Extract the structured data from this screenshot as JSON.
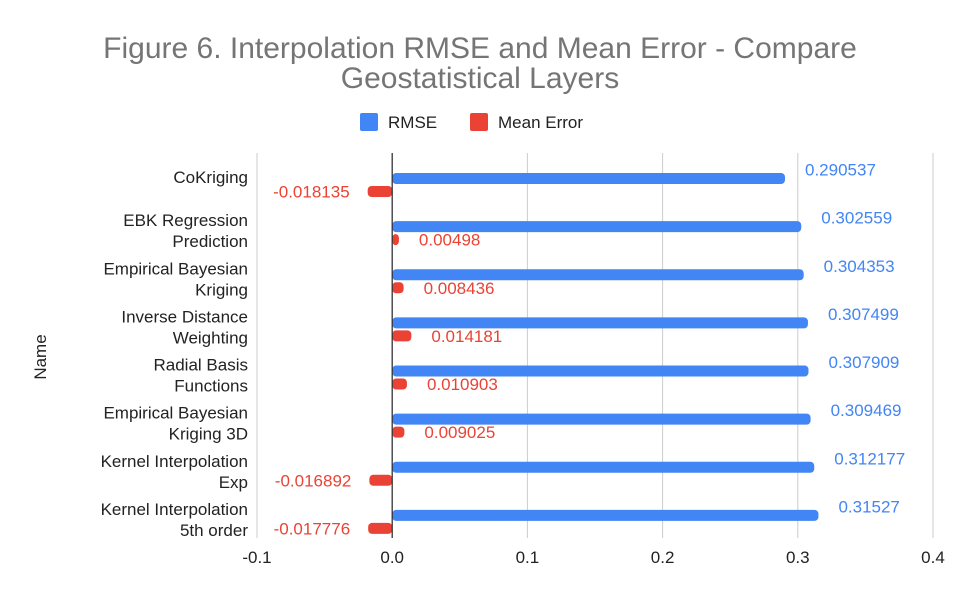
{
  "chart_data": {
    "type": "bar",
    "orientation": "horizontal",
    "title": "Figure 6. Interpolation RMSE and Mean Error - Compare Geostatistical Layers",
    "title_lines": [
      "Figure 6. Interpolation RMSE and Mean Error - Compare",
      "Geostatistical Layers"
    ],
    "ylabel": "Name",
    "xlabel": "",
    "xlim": [
      -0.1,
      0.4
    ],
    "xticks": [
      -0.1,
      0.0,
      0.1,
      0.2,
      0.3,
      0.4
    ],
    "xtick_labels": [
      "-0.1",
      "0.0",
      "0.1",
      "0.2",
      "0.3",
      "0.4"
    ],
    "grid": true,
    "legend_position": "top",
    "categories": [
      [
        "CoKriging"
      ],
      [
        "EBK Regression",
        "Prediction"
      ],
      [
        "Empirical Bayesian",
        "Kriging"
      ],
      [
        "Inverse Distance",
        "Weighting"
      ],
      [
        "Radial Basis",
        "Functions"
      ],
      [
        "Empirical Bayesian",
        "Kriging 3D"
      ],
      [
        "Kernel Interpolation",
        "Exp"
      ],
      [
        "Kernel Interpolation",
        "5th order"
      ]
    ],
    "series": [
      {
        "name": "RMSE",
        "color": "#4285f4",
        "values": [
          0.290537,
          0.302559,
          0.304353,
          0.307499,
          0.307909,
          0.309469,
          0.312177,
          0.31527
        ],
        "labels": [
          "0.290537",
          "0.302559",
          "0.304353",
          "0.307499",
          "0.307909",
          "0.309469",
          "0.312177",
          "0.31527"
        ]
      },
      {
        "name": "Mean Error",
        "color": "#ea4335",
        "values": [
          -0.018135,
          0.00498,
          0.008436,
          0.014181,
          0.010903,
          0.009025,
          -0.016892,
          -0.017776
        ],
        "labels": [
          "-0.018135",
          "0.00498",
          "0.008436",
          "0.014181",
          "0.010903",
          "0.009025",
          "-0.016892",
          "-0.017776"
        ]
      }
    ]
  }
}
